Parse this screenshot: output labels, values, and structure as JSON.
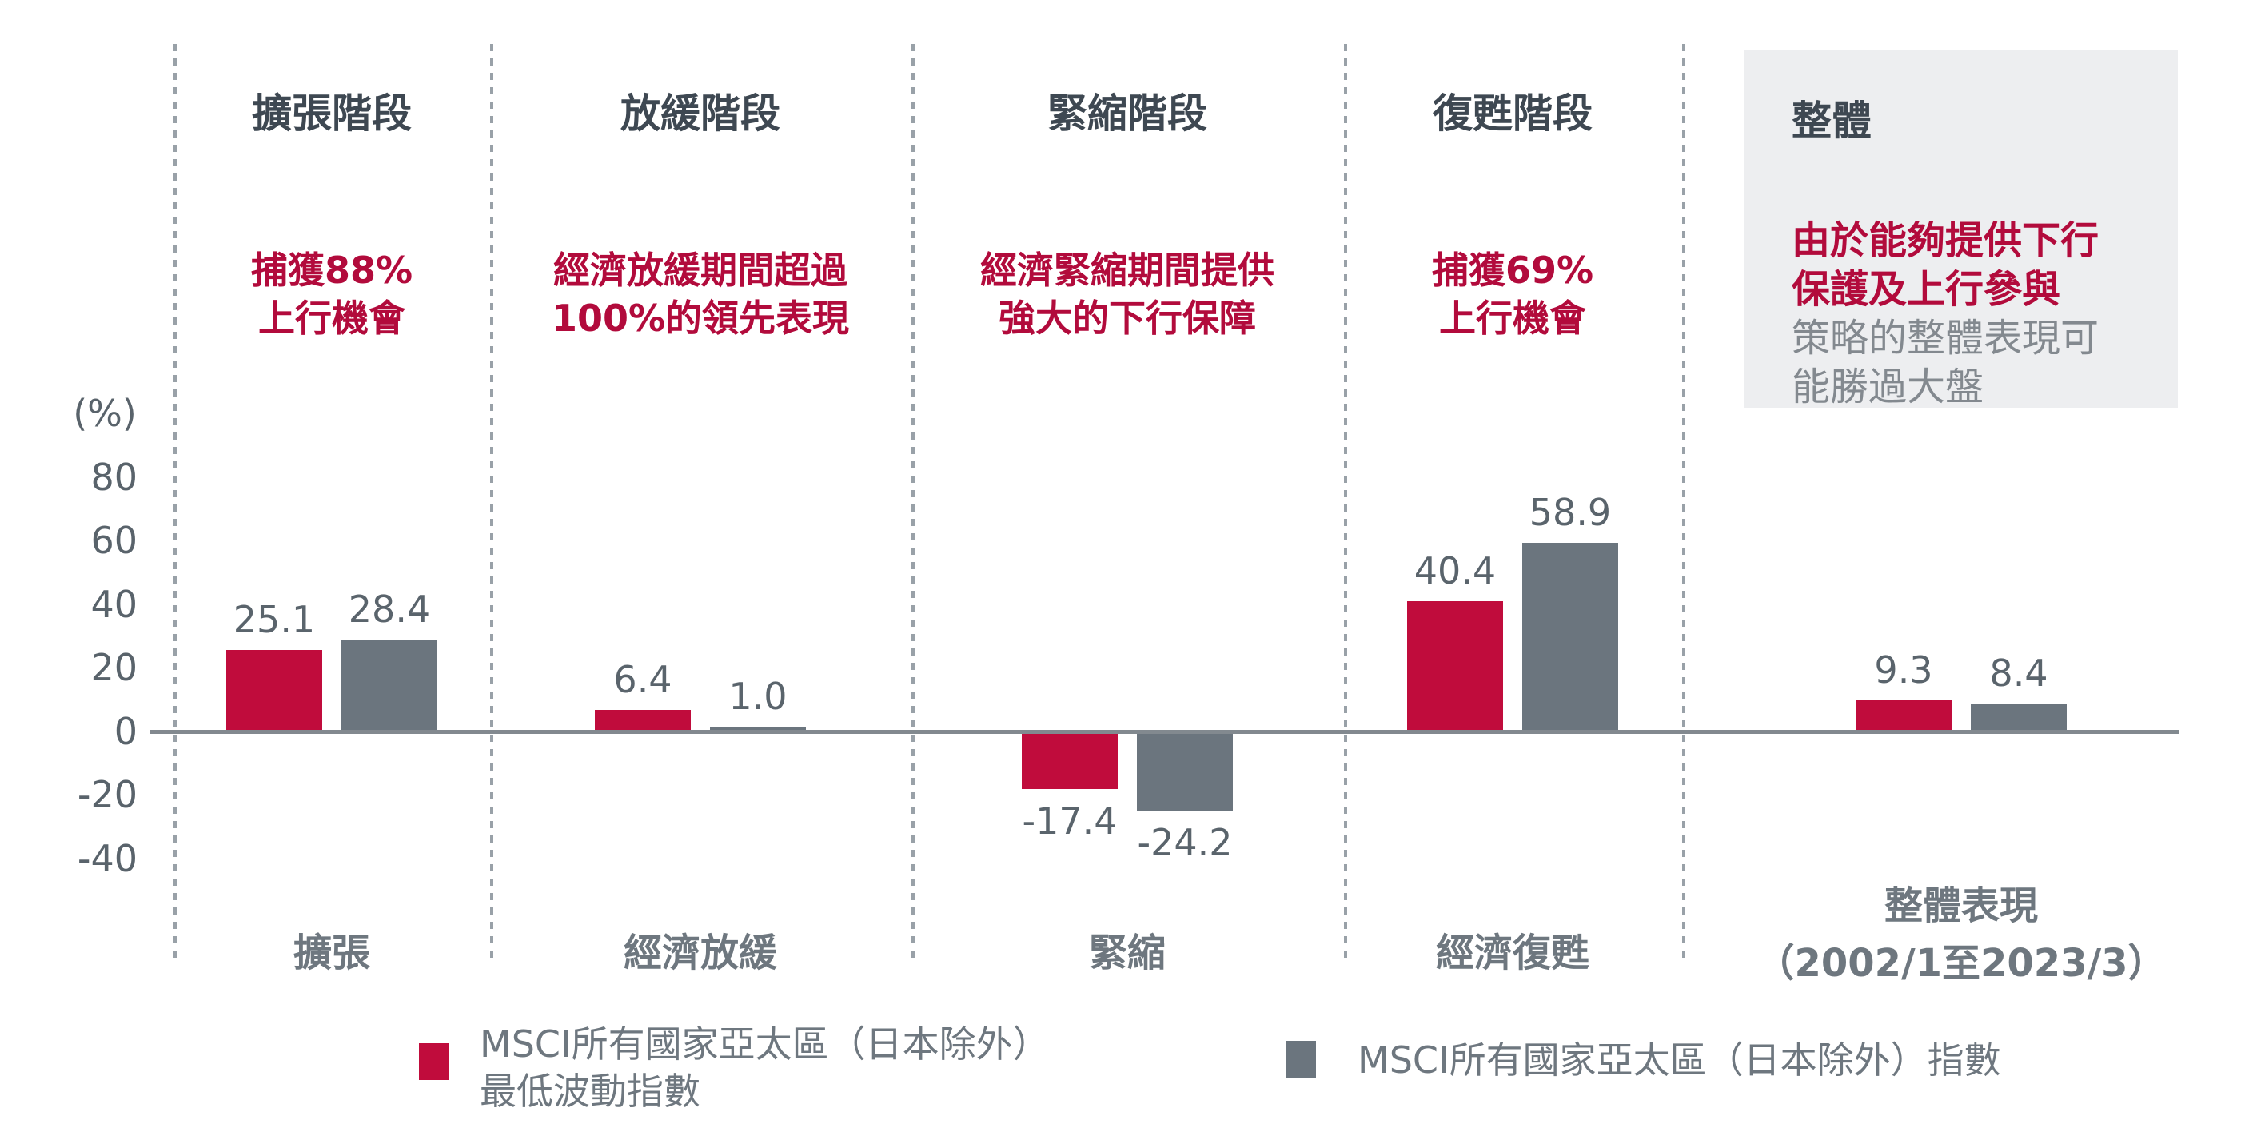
{
  "chart_data": {
    "type": "bar",
    "unit_label": "(%)",
    "y_ticks": [
      80,
      60,
      40,
      20,
      0,
      -20,
      -40
    ],
    "ylim": [
      -55,
      95
    ],
    "grid": false,
    "legend_position": "bottom",
    "categories": [
      "擴張",
      "經濟放緩",
      "緊縮",
      "經濟復甦",
      "整體表現\n（2002/1至2023/3）"
    ],
    "series": [
      {
        "name": "MSCI所有國家亞太區（日本除外）\n最低波動指數",
        "color": "#c00c3c",
        "values": [
          25.1,
          6.4,
          -17.4,
          40.4,
          9.3
        ]
      },
      {
        "name": "MSCI所有國家亞太區（日本除外）指數",
        "color": "#6b757e",
        "values": [
          28.4,
          1.0,
          -24.2,
          58.9,
          8.4
        ]
      }
    ]
  },
  "sections": [
    {
      "title": "擴張階段",
      "annotation": "捕獲88%\n上行機會"
    },
    {
      "title": "放緩階段",
      "annotation": "經濟放緩期間超過\n100%的領先表現"
    },
    {
      "title": "緊縮階段",
      "annotation": "經濟緊縮期間提供\n強大的下行保障"
    },
    {
      "title": "復甦階段",
      "annotation": "捕獲69%\n上行機會"
    }
  ],
  "overall_box": {
    "title": "整體",
    "highlight": "由於能夠提供下行\n保護及上行參與",
    "body": "策略的整體表現可\n能勝過大盤"
  },
  "colors": {
    "red_bar": "#c00c3c",
    "gray_bar": "#6b757e",
    "title_text": "#3e4852",
    "annotation_red": "#b20b3c",
    "axis_text": "#59636b",
    "box_background": "#edeef0",
    "dotted_line": "#99a1a8"
  }
}
